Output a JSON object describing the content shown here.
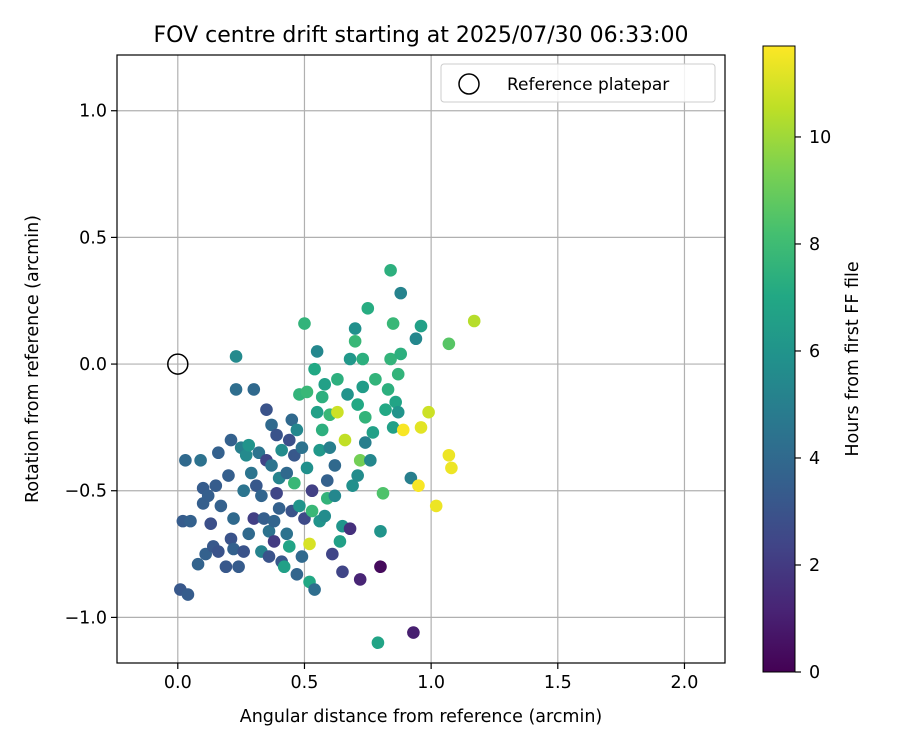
{
  "chart_data": {
    "type": "scatter",
    "title": "FOV centre drift starting at 2025/07/30 06:33:00",
    "xlabel": "Angular distance from reference (arcmin)",
    "ylabel": "Rotation from reference (arcmin)",
    "xlim": [
      -0.24,
      2.16
    ],
    "ylim": [
      -1.18,
      1.22
    ],
    "xticks": [
      0.0,
      0.5,
      1.0,
      1.5,
      2.0
    ],
    "xtick_labels": [
      "0.0",
      "0.5",
      "1.0",
      "1.5",
      "2.0"
    ],
    "yticks": [
      1.0,
      0.5,
      0.0,
      -0.5,
      -1.0
    ],
    "ytick_labels": [
      "1.0",
      "0.5",
      "0.0",
      "−0.5",
      "−1.0"
    ],
    "grid": true,
    "legend": {
      "placement": "top-right",
      "entries": [
        "Reference platepar"
      ]
    },
    "reference": {
      "x": 0.0,
      "y": 0.0
    },
    "colorbar": {
      "label": "Hours from first FF file",
      "range": [
        0,
        11.7
      ],
      "ticks": [
        0,
        2,
        4,
        6,
        8,
        10
      ],
      "tick_labels": [
        "0",
        "2",
        "4",
        "6",
        "8",
        "10"
      ],
      "colormap": "viridis"
    },
    "series": [
      {
        "points": [
          [
            0.01,
            -0.89,
            3.2
          ],
          [
            0.02,
            -0.62,
            3.4
          ],
          [
            0.03,
            -0.38,
            4.0
          ],
          [
            0.04,
            -0.91,
            3.4
          ],
          [
            0.05,
            -0.62,
            3.6
          ],
          [
            0.08,
            -0.79,
            3.7
          ],
          [
            0.09,
            -0.38,
            4.4
          ],
          [
            0.1,
            -0.55,
            3.5
          ],
          [
            0.1,
            -0.49,
            3.4
          ],
          [
            0.11,
            -0.75,
            3.6
          ],
          [
            0.12,
            -0.52,
            3.5
          ],
          [
            0.13,
            -0.63,
            2.8
          ],
          [
            0.14,
            -0.72,
            3.2
          ],
          [
            0.15,
            -0.48,
            3.4
          ],
          [
            0.16,
            -0.35,
            3.6
          ],
          [
            0.16,
            -0.74,
            3.0
          ],
          [
            0.17,
            -0.56,
            3.6
          ],
          [
            0.19,
            -0.8,
            3.2
          ],
          [
            0.2,
            -0.44,
            3.5
          ],
          [
            0.21,
            -0.3,
            3.6
          ],
          [
            0.21,
            -0.69,
            3.0
          ],
          [
            0.22,
            -0.73,
            3.6
          ],
          [
            0.22,
            -0.61,
            4.0
          ],
          [
            0.23,
            0.03,
            5.5
          ],
          [
            0.23,
            -0.1,
            4.2
          ],
          [
            0.24,
            -0.8,
            3.4
          ],
          [
            0.25,
            -0.33,
            5.0
          ],
          [
            0.26,
            -0.74,
            3.0
          ],
          [
            0.26,
            -0.5,
            4.5
          ],
          [
            0.27,
            -0.36,
            5.5
          ],
          [
            0.28,
            -0.67,
            4.0
          ],
          [
            0.28,
            -0.32,
            6.0
          ],
          [
            0.29,
            -0.43,
            4.5
          ],
          [
            0.3,
            -0.1,
            4.0
          ],
          [
            0.3,
            -0.61,
            2.2
          ],
          [
            0.31,
            -0.48,
            3.2
          ],
          [
            0.32,
            -0.35,
            4.5
          ],
          [
            0.33,
            -0.52,
            3.8
          ],
          [
            0.33,
            -0.74,
            5.2
          ],
          [
            0.34,
            -0.61,
            3.5
          ],
          [
            0.35,
            -0.18,
            3.0
          ],
          [
            0.35,
            -0.38,
            2.4
          ],
          [
            0.36,
            -0.66,
            4.4
          ],
          [
            0.36,
            -0.76,
            3.0
          ],
          [
            0.37,
            -0.24,
            4.0
          ],
          [
            0.37,
            -0.4,
            4.5
          ],
          [
            0.38,
            -0.62,
            3.8
          ],
          [
            0.38,
            -0.7,
            2.0
          ],
          [
            0.39,
            -0.51,
            2.4
          ],
          [
            0.39,
            -0.28,
            3.0
          ],
          [
            0.4,
            -0.45,
            5.2
          ],
          [
            0.4,
            -0.57,
            3.6
          ],
          [
            0.41,
            -0.78,
            3.2
          ],
          [
            0.41,
            -0.34,
            5.6
          ],
          [
            0.42,
            -0.8,
            6.6
          ],
          [
            0.43,
            -0.67,
            4.4
          ],
          [
            0.43,
            -0.43,
            4.0
          ],
          [
            0.44,
            -0.3,
            2.8
          ],
          [
            0.44,
            -0.72,
            6.8
          ],
          [
            0.45,
            -0.58,
            3.0
          ],
          [
            0.45,
            -0.22,
            4.0
          ],
          [
            0.46,
            -0.47,
            7.8
          ],
          [
            0.46,
            -0.36,
            3.2
          ],
          [
            0.47,
            -0.26,
            5.4
          ],
          [
            0.47,
            -0.83,
            3.8
          ],
          [
            0.48,
            -0.56,
            6.0
          ],
          [
            0.48,
            -0.12,
            7.6
          ],
          [
            0.49,
            -0.33,
            4.4
          ],
          [
            0.49,
            -0.76,
            4.0
          ],
          [
            0.5,
            0.16,
            7.6
          ],
          [
            0.5,
            -0.61,
            2.6
          ],
          [
            0.51,
            -0.11,
            7.8
          ],
          [
            0.51,
            -0.41,
            5.8
          ],
          [
            0.52,
            -0.86,
            7.0
          ],
          [
            0.52,
            -0.71,
            11.0
          ],
          [
            0.53,
            -0.5,
            2.2
          ],
          [
            0.53,
            -0.58,
            7.8
          ],
          [
            0.54,
            -0.02,
            7.0
          ],
          [
            0.54,
            -0.89,
            4.2
          ],
          [
            0.55,
            0.05,
            5.4
          ],
          [
            0.55,
            -0.19,
            6.6
          ],
          [
            0.56,
            -0.34,
            6.2
          ],
          [
            0.56,
            -0.62,
            6.0
          ],
          [
            0.57,
            -0.26,
            7.4
          ],
          [
            0.57,
            -0.13,
            7.4
          ],
          [
            0.58,
            -0.6,
            5.6
          ],
          [
            0.58,
            -0.08,
            6.6
          ],
          [
            0.59,
            -0.46,
            3.6
          ],
          [
            0.59,
            -0.53,
            7.6
          ],
          [
            0.6,
            -0.33,
            5.0
          ],
          [
            0.6,
            -0.2,
            7.8
          ],
          [
            0.61,
            -0.75,
            2.4
          ],
          [
            0.62,
            -0.52,
            5.4
          ],
          [
            0.62,
            -0.4,
            4.0
          ],
          [
            0.63,
            -0.06,
            7.4
          ],
          [
            0.63,
            -0.19,
            10.8
          ],
          [
            0.64,
            -0.7,
            6.6
          ],
          [
            0.65,
            -0.64,
            6.0
          ],
          [
            0.65,
            -0.82,
            2.4
          ],
          [
            0.66,
            -0.3,
            10.6
          ],
          [
            0.67,
            -0.12,
            6.0
          ],
          [
            0.68,
            0.02,
            6.2
          ],
          [
            0.68,
            -0.65,
            1.6
          ],
          [
            0.69,
            -0.48,
            5.8
          ],
          [
            0.7,
            0.14,
            5.8
          ],
          [
            0.7,
            0.09,
            7.8
          ],
          [
            0.71,
            -0.16,
            7.0
          ],
          [
            0.71,
            -0.44,
            5.6
          ],
          [
            0.72,
            -0.85,
            1.2
          ],
          [
            0.72,
            -0.38,
            9.2
          ],
          [
            0.73,
            -0.09,
            6.4
          ],
          [
            0.73,
            0.02,
            7.4
          ],
          [
            0.74,
            -0.31,
            5.0
          ],
          [
            0.74,
            -0.21,
            7.6
          ],
          [
            0.75,
            0.22,
            7.2
          ],
          [
            0.76,
            -0.38,
            5.4
          ],
          [
            0.77,
            -0.27,
            6.6
          ],
          [
            0.78,
            -0.06,
            7.6
          ],
          [
            0.79,
            -1.1,
            6.8
          ],
          [
            0.8,
            -0.8,
            0.3
          ],
          [
            0.8,
            -0.66,
            6.0
          ],
          [
            0.81,
            -0.51,
            8.4
          ],
          [
            0.82,
            -0.18,
            7.0
          ],
          [
            0.83,
            -0.1,
            7.4
          ],
          [
            0.84,
            0.37,
            7.4
          ],
          [
            0.84,
            0.02,
            7.6
          ],
          [
            0.85,
            -0.25,
            6.6
          ],
          [
            0.85,
            0.16,
            7.8
          ],
          [
            0.86,
            -0.15,
            6.8
          ],
          [
            0.87,
            -0.19,
            6.0
          ],
          [
            0.87,
            -0.04,
            7.6
          ],
          [
            0.88,
            0.28,
            5.2
          ],
          [
            0.88,
            0.04,
            7.4
          ],
          [
            0.89,
            -0.26,
            11.6
          ],
          [
            0.92,
            -0.45,
            5.0
          ],
          [
            0.93,
            -1.06,
            1.0
          ],
          [
            0.94,
            0.1,
            5.4
          ],
          [
            0.95,
            -0.48,
            11.6
          ],
          [
            0.96,
            0.15,
            6.6
          ],
          [
            0.96,
            -0.25,
            11.2
          ],
          [
            0.99,
            -0.19,
            10.8
          ],
          [
            1.02,
            -0.56,
            11.4
          ],
          [
            1.07,
            0.08,
            8.6
          ],
          [
            1.07,
            -0.36,
            11.4
          ],
          [
            1.08,
            -0.41,
            11.4
          ],
          [
            1.17,
            0.17,
            10.4
          ]
        ]
      }
    ]
  }
}
